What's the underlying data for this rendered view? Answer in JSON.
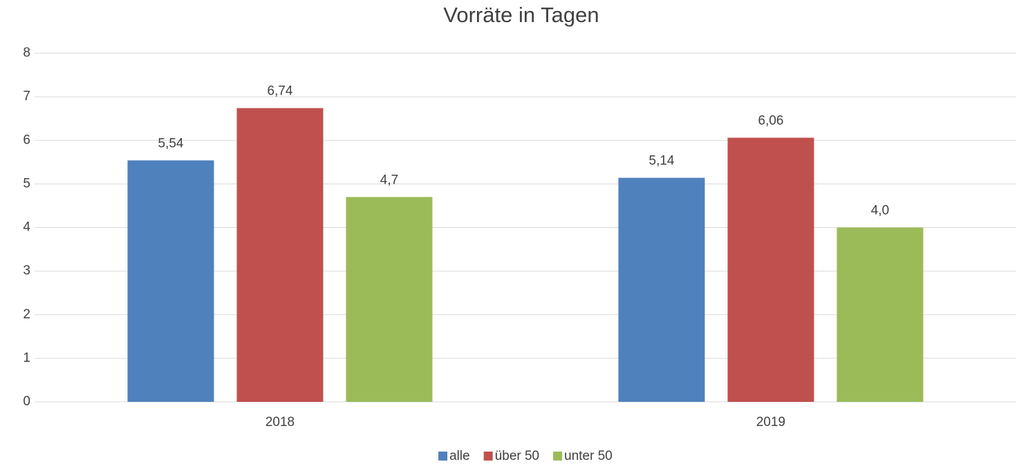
{
  "chart_data": {
    "type": "bar",
    "title": "Vorräte in Tagen",
    "categories": [
      "2018",
      "2019"
    ],
    "series": [
      {
        "name": "alle",
        "color": "#4f81bd",
        "values": [
          5.54,
          5.14
        ],
        "value_labels": [
          "5,54",
          "5,14"
        ]
      },
      {
        "name": "über 50",
        "color": "#c0504d",
        "values": [
          6.74,
          6.06
        ],
        "value_labels": [
          "6,74",
          "6,06"
        ]
      },
      {
        "name": "unter 50",
        "color": "#9bbb59",
        "values": [
          4.7,
          4.0
        ],
        "value_labels": [
          "4,7",
          "4,0"
        ]
      }
    ],
    "ylim": [
      0,
      8
    ],
    "yticks": [
      0,
      1,
      2,
      3,
      4,
      5,
      6,
      7,
      8
    ],
    "grid": true,
    "legend": "bottom"
  }
}
